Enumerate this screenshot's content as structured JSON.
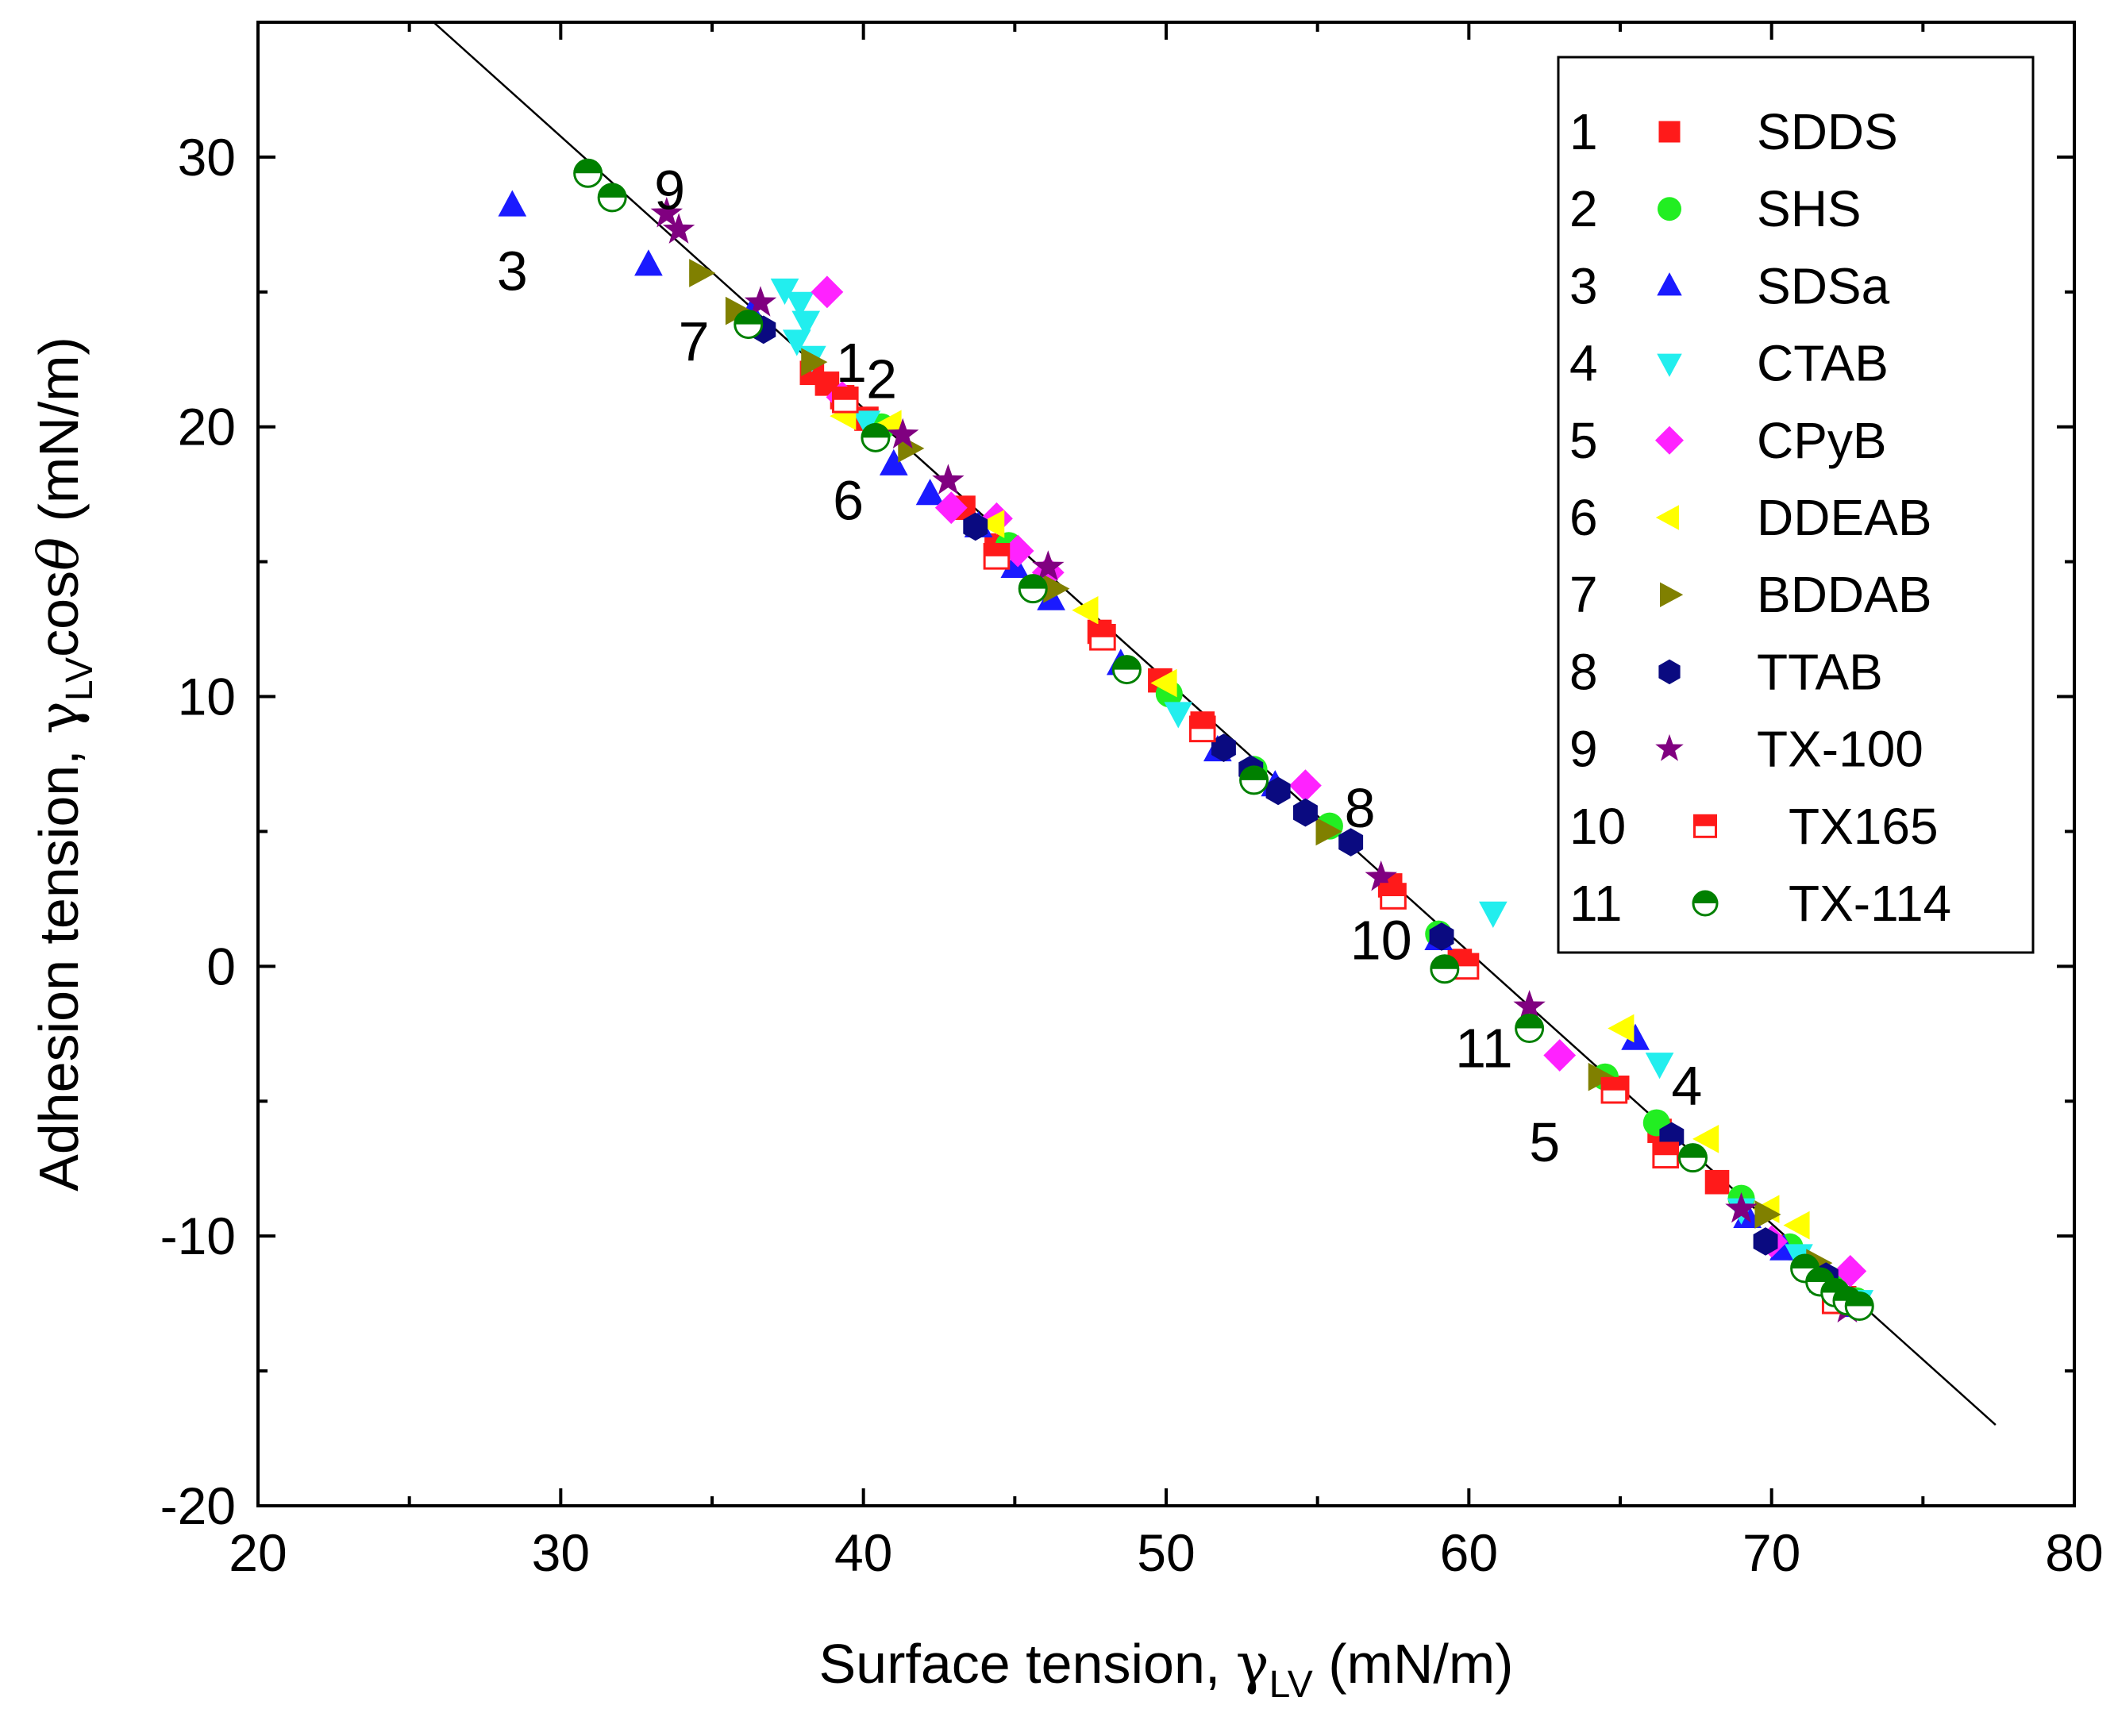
{
  "chart_data": {
    "type": "scatter",
    "title": "",
    "xlabel": "Surface tension, γLV (mN/m)",
    "ylabel": "Adhesion tension, γLVcosθ (mN/m)",
    "xlabel_parts": [
      "Surface tension, ",
      "γ",
      "LV",
      " (mN/m)"
    ],
    "ylabel_parts": [
      "Adhesion tension, ",
      "γ",
      "LV",
      "cos",
      "θ",
      " (mN/m)"
    ],
    "xlim": [
      20,
      80
    ],
    "ylim": [
      -20,
      35
    ],
    "xticks": [
      20,
      30,
      40,
      50,
      60,
      70,
      80
    ],
    "yticks": [
      -20,
      -10,
      0,
      10,
      20,
      30
    ],
    "legend_position": "top-right",
    "fit_line": {
      "from": [
        25.8,
        35
      ],
      "to": [
        77.4,
        -17
      ]
    },
    "series": [
      {
        "num": "1",
        "name": "SDDS",
        "marker": "square",
        "color": "#ff1a1a",
        "points": [
          [
            38.3,
            22.0
          ],
          [
            38.8,
            21.6
          ],
          [
            39.3,
            21.1
          ],
          [
            40.1,
            20.3
          ],
          [
            43.3,
            17.0
          ],
          [
            44.4,
            15.6
          ],
          [
            47.8,
            12.4
          ],
          [
            49.8,
            10.6
          ],
          [
            51.2,
            9.0
          ],
          [
            57.4,
            3.0
          ],
          [
            59.7,
            0.2
          ],
          [
            64.9,
            -4.5
          ],
          [
            66.3,
            -6.1
          ],
          [
            68.2,
            -8.0
          ],
          [
            70.4,
            -10.4
          ],
          [
            71.2,
            -11.2
          ],
          [
            72.4,
            -12.3
          ]
        ]
      },
      {
        "num": "2",
        "name": "SHS",
        "marker": "circle",
        "color": "#22ee22",
        "points": [
          [
            40.6,
            20.0
          ],
          [
            44.8,
            15.6
          ],
          [
            50.1,
            10.1
          ],
          [
            52.9,
            7.3
          ],
          [
            55.4,
            5.2
          ],
          [
            59.0,
            1.2
          ],
          [
            64.5,
            -4.1
          ],
          [
            66.2,
            -5.8
          ],
          [
            69.0,
            -8.6
          ],
          [
            70.6,
            -10.4
          ],
          [
            71.9,
            -11.6
          ],
          [
            72.8,
            -12.4
          ]
        ]
      },
      {
        "num": "3",
        "name": "SDSa",
        "marker": "triangle-up",
        "color": "#1a1aff",
        "points": [
          [
            28.4,
            28.2
          ],
          [
            32.9,
            26.0
          ],
          [
            36.3,
            24.2
          ],
          [
            41.0,
            18.6
          ],
          [
            42.2,
            17.5
          ],
          [
            43.8,
            16.3
          ],
          [
            45.0,
            14.8
          ],
          [
            46.2,
            13.6
          ],
          [
            48.5,
            11.2
          ],
          [
            51.7,
            8.0
          ],
          [
            53.6,
            6.7
          ],
          [
            59.0,
            1.0
          ],
          [
            65.5,
            -2.7
          ],
          [
            69.2,
            -9.3
          ],
          [
            70.4,
            -10.5
          ],
          [
            71.7,
            -11.7
          ],
          [
            72.7,
            -12.6
          ]
        ]
      },
      {
        "num": "4",
        "name": "CTAB",
        "marker": "triangle-down",
        "color": "#22eeee",
        "points": [
          [
            37.4,
            25.1
          ],
          [
            37.9,
            24.6
          ],
          [
            38.1,
            23.9
          ],
          [
            37.8,
            23.2
          ],
          [
            38.3,
            22.6
          ],
          [
            40.1,
            20.2
          ],
          [
            50.4,
            9.4
          ],
          [
            60.8,
            2.0
          ],
          [
            66.3,
            -3.6
          ],
          [
            69.0,
            -9.0
          ],
          [
            70.9,
            -10.7
          ],
          [
            72.9,
            -12.4
          ]
        ]
      },
      {
        "num": "5",
        "name": "CPyB",
        "marker": "diamond",
        "color": "#ff22ff",
        "points": [
          [
            38.8,
            25.0
          ],
          [
            39.3,
            21.1
          ],
          [
            42.9,
            17.0
          ],
          [
            44.4,
            16.6
          ],
          [
            45.1,
            15.4
          ],
          [
            46.1,
            14.6
          ],
          [
            54.6,
            6.7
          ],
          [
            63.0,
            -3.3
          ],
          [
            72.6,
            -11.3
          ],
          [
            70.0,
            -10.2
          ]
        ]
      },
      {
        "num": "6",
        "name": "DDEAB",
        "marker": "triangle-left",
        "color": "#ffff00",
        "points": [
          [
            39.4,
            20.4
          ],
          [
            40.9,
            20.1
          ],
          [
            44.3,
            16.4
          ],
          [
            47.4,
            13.2
          ],
          [
            50.0,
            10.5
          ],
          [
            65.1,
            -2.3
          ],
          [
            67.9,
            -6.4
          ],
          [
            69.9,
            -9.0
          ],
          [
            70.9,
            -9.6
          ]
        ]
      },
      {
        "num": "7",
        "name": "BDDAB",
        "marker": "triangle-right",
        "color": "#808000",
        "points": [
          [
            34.6,
            25.7
          ],
          [
            35.8,
            24.3
          ],
          [
            38.3,
            22.4
          ],
          [
            41.5,
            19.2
          ],
          [
            46.3,
            14.0
          ],
          [
            55.3,
            5.0
          ],
          [
            64.3,
            -4.1
          ],
          [
            69.8,
            -9.2
          ],
          [
            71.5,
            -11.0
          ]
        ]
      },
      {
        "num": "8",
        "name": "TTAB",
        "marker": "hexagon",
        "color": "#0a0a80",
        "points": [
          [
            36.7,
            23.6
          ],
          [
            43.7,
            16.3
          ],
          [
            51.9,
            8.1
          ],
          [
            52.8,
            7.3
          ],
          [
            53.7,
            6.5
          ],
          [
            54.6,
            5.7
          ],
          [
            56.1,
            4.6
          ],
          [
            59.1,
            1.1
          ],
          [
            66.7,
            -6.3
          ],
          [
            69.8,
            -10.2
          ],
          [
            71.8,
            -11.5
          ]
        ]
      },
      {
        "num": "9",
        "name": "TX-100",
        "marker": "star",
        "color": "#800080",
        "points": [
          [
            33.5,
            27.9
          ],
          [
            33.9,
            27.3
          ],
          [
            36.6,
            24.6
          ],
          [
            41.3,
            19.7
          ],
          [
            42.8,
            18.0
          ],
          [
            46.1,
            14.8
          ],
          [
            57.1,
            3.3
          ],
          [
            62.0,
            -1.5
          ],
          [
            69.0,
            -9.0
          ],
          [
            72.5,
            -12.7
          ]
        ]
      },
      {
        "num": "10",
        "name": "TX165",
        "marker": "half-square",
        "color": "#ff1a1a",
        "points": [
          [
            39.4,
            21.0
          ],
          [
            44.4,
            15.2
          ],
          [
            47.9,
            12.2
          ],
          [
            51.2,
            8.8
          ],
          [
            57.5,
            2.6
          ],
          [
            59.9,
            0.0
          ],
          [
            64.8,
            -4.6
          ],
          [
            66.5,
            -7.0
          ],
          [
            72.1,
            -12.4
          ]
        ]
      },
      {
        "num": "11",
        "name": "TX-114",
        "marker": "half-circle",
        "color": "#008000",
        "points": [
          [
            30.9,
            29.4
          ],
          [
            31.7,
            28.5
          ],
          [
            36.2,
            23.8
          ],
          [
            40.4,
            19.6
          ],
          [
            45.6,
            14.0
          ],
          [
            48.7,
            11.0
          ],
          [
            52.9,
            6.9
          ],
          [
            59.2,
            -0.1
          ],
          [
            62.0,
            -2.3
          ],
          [
            67.4,
            -7.1
          ],
          [
            71.1,
            -11.2
          ],
          [
            71.6,
            -11.7
          ],
          [
            72.1,
            -12.1
          ],
          [
            72.5,
            -12.4
          ],
          [
            72.9,
            -12.6
          ]
        ]
      }
    ],
    "annotations": [
      {
        "text": "3",
        "x": 28.4,
        "y": 25.8
      },
      {
        "text": "9",
        "x": 33.6,
        "y": 28.8
      },
      {
        "text": "7",
        "x": 34.4,
        "y": 23.2
      },
      {
        "text": "1",
        "x": 39.6,
        "y": 22.4
      },
      {
        "text": "2",
        "x": 40.6,
        "y": 21.8
      },
      {
        "text": "6",
        "x": 39.5,
        "y": 17.3
      },
      {
        "text": "8",
        "x": 56.4,
        "y": 5.9
      },
      {
        "text": "10",
        "x": 57.1,
        "y": 1.0
      },
      {
        "text": "11",
        "x": 60.5,
        "y": -3.0
      },
      {
        "text": "4",
        "x": 67.2,
        "y": -4.4
      },
      {
        "text": "5",
        "x": 62.5,
        "y": -6.5
      }
    ]
  }
}
